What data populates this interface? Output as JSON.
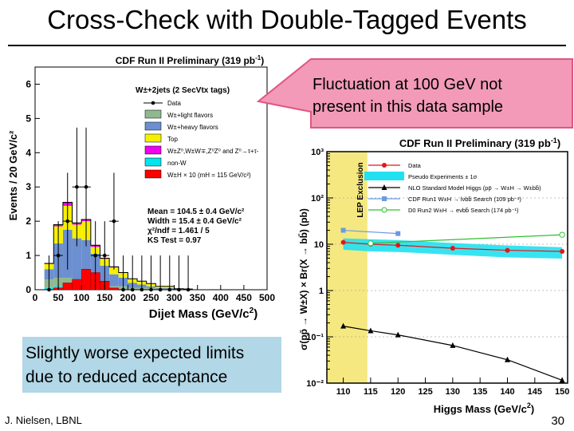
{
  "slide": {
    "title": "Cross-Check with Double-Tagged Events",
    "callout": [
      "Fluctuation at 100 GeV not",
      "present in this data sample"
    ],
    "note": [
      "Slightly worse expected limits",
      "due to reduced acceptance"
    ],
    "author": "J. Nielsen, LBNL",
    "page_number": "30",
    "colors": {
      "note_bg": "#b2d7e6",
      "callout_fill": "#f29ab8",
      "callout_stroke": "#e0567f"
    }
  },
  "chart_data": [
    {
      "type": "bar",
      "title": "CDF Run II Preliminary (319 pb",
      "title_exp": "-1",
      "title_close": ")",
      "subtitle": "W±+2jets (2 SecVtx tags)",
      "xlabel": "Dijet Mass (GeV/c",
      "xlabel_exp": "2",
      "xlabel_close": ")",
      "ylabel": "Events / 20 GeV/c²",
      "xlim": [
        0,
        500
      ],
      "ylim": [
        0,
        6.5
      ],
      "xticks": [
        0,
        50,
        100,
        150,
        200,
        250,
        300,
        350,
        400,
        450,
        500
      ],
      "yticks": [
        0,
        1,
        2,
        3,
        4,
        5,
        6
      ],
      "bin_edges": [
        20,
        40,
        60,
        80,
        100,
        120,
        140,
        160,
        180,
        200,
        220,
        240,
        260,
        280,
        300,
        320,
        340
      ],
      "stack": [
        {
          "name": "non-W",
          "color": "#00e5f0",
          "values": [
            0.05,
            0.1,
            0.1,
            0.05,
            0.05,
            0.05,
            0,
            0,
            0,
            0,
            0,
            0,
            0,
            0,
            0,
            0
          ]
        },
        {
          "name": "W±light flavors",
          "color": "#90b890",
          "values": [
            0.25,
            0.25,
            0.25,
            0.25,
            0.2,
            0.2,
            0.15,
            0.1,
            0.1,
            0.05,
            0.05,
            0.05,
            0,
            0,
            0,
            0
          ]
        },
        {
          "name": "W±heavy flavors",
          "color": "#6b8fd0",
          "values": [
            0.3,
            1.0,
            1.4,
            1.2,
            1.2,
            0.8,
            0.55,
            0.35,
            0.25,
            0.15,
            0.1,
            0.05,
            0.05,
            0.05,
            0,
            0
          ]
        },
        {
          "name": "Top",
          "color": "#f5f000",
          "values": [
            0.15,
            0.5,
            0.7,
            0.4,
            0.55,
            0.2,
            0.2,
            0.2,
            0.15,
            0.12,
            0.1,
            0.08,
            0.05,
            0.05,
            0.03,
            0.02
          ]
        },
        {
          "name": "W±Z⁰,W±W∓,Z⁰Z⁰ and Z⁰→τ+τ-",
          "color": "#f000f0",
          "values": [
            0.02,
            0.05,
            0.1,
            0.05,
            0.05,
            0.05,
            0.02,
            0.02,
            0,
            0,
            0,
            0,
            0,
            0,
            0,
            0
          ]
        }
      ],
      "higgs_overlay": {
        "name": "W±H × 10 (mH = 115 GeV/c²)",
        "color": "#ff0000",
        "values": [
          0.0,
          0.05,
          0.2,
          0.3,
          0.6,
          0.5,
          0.25,
          0.05,
          0,
          0,
          0,
          0,
          0,
          0,
          0,
          0
        ]
      },
      "data": {
        "name": "Data",
        "x": [
          30,
          50,
          70,
          90,
          110,
          130,
          150,
          170,
          190,
          210,
          230,
          250,
          270,
          290,
          310,
          330
        ],
        "y": [
          0,
          1,
          2,
          3,
          3,
          1,
          1,
          2,
          0,
          0,
          0,
          0,
          0,
          0,
          0,
          0
        ]
      },
      "legend": [
        "Data",
        "W±+light flavors",
        "W±+heavy flavors",
        "Top",
        "W±Z⁰,W±W∓,Z⁰Z⁰ and Z⁰→τ+τ-",
        "non-W",
        "W±H × 10 (mH = 115 GeV/c²)"
      ],
      "stats": [
        "Mean = 104.5 ± 0.4 GeV/c²",
        "Width = 15.4 ± 0.4 GeV/c²",
        "χ²/ndf = 1.461 / 5",
        "KS Test = 0.97"
      ]
    },
    {
      "type": "line",
      "title": "CDF Run II Preliminary (319 pb",
      "title_exp": "-1",
      "title_close": ")",
      "xlabel": "Higgs Mass (GeV/c",
      "xlabel_exp": "2",
      "xlabel_close": ")",
      "ylabel": "σ(pp̄ → W±X) × Br(X → bb̄) (pb)",
      "ylog": true,
      "ylim": [
        0.01,
        1000
      ],
      "xlim": [
        107,
        151
      ],
      "xticks": [
        110,
        115,
        120,
        125,
        130,
        135,
        140,
        145,
        150
      ],
      "lep_exclusion": {
        "label": "LEP Exclusion",
        "x_range": [
          107,
          114.4
        ],
        "color": "#f5e880"
      },
      "series": [
        {
          "name": "Data",
          "color": "#e01818",
          "marker": "circle",
          "x": [
            110,
            115,
            120,
            130,
            140,
            150
          ],
          "y": [
            11.0,
            10.0,
            9.5,
            8.2,
            7.4,
            7.0
          ]
        },
        {
          "name": "Pseudo Experiments ± 1σ",
          "color": "#22e0f0",
          "band": true,
          "x": [
            110,
            115,
            120,
            130,
            140,
            150
          ],
          "y_low": [
            7.6,
            7.0,
            6.8,
            5.9,
            5.2,
            4.9
          ],
          "y_high": [
            13.4,
            12.8,
            12.3,
            10.6,
            9.4,
            8.6
          ]
        },
        {
          "name": "NLO Standard Model Higgs (pp̄ → W±H → W±bb̄)",
          "color": "#000000",
          "marker": "triangle",
          "x": [
            110,
            115,
            120,
            130,
            140,
            150
          ],
          "y": [
            0.17,
            0.135,
            0.11,
            0.065,
            0.032,
            0.0115
          ]
        },
        {
          "name": "CDF Run1 W±H → lνbb̄ Search (109 pb⁻¹)",
          "color": "#6b9ae0",
          "marker": "square",
          "x": [
            110,
            120
          ],
          "y": [
            20,
            17
          ]
        },
        {
          "name": "D0 Run2 W±H → eνbb̄ Search (174 pb⁻¹)",
          "color": "#30c030",
          "marker": "open-circle",
          "x": [
            115,
            150
          ],
          "y": [
            10.5,
            16
          ]
        }
      ],
      "legend": [
        "Data",
        "Pseudo Experiments ± 1σ",
        "NLO Standard Model Higgs (pp̄ → W±H → W±bb̄)",
        "CDF Run1 W±H → lνbb̄ Search (109 pb⁻¹)",
        "D0 Run2 W±H → eνbb̄ Search (174 pb⁻¹)"
      ]
    }
  ]
}
